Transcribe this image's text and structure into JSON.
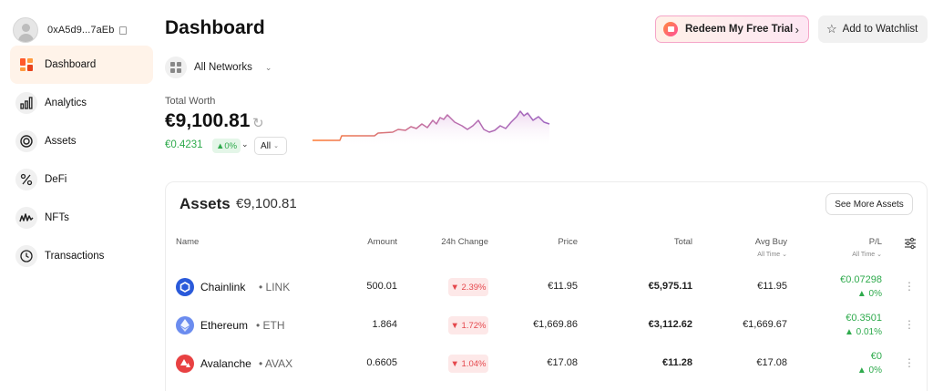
{
  "account": {
    "address": "0xA5d9...7aEb"
  },
  "sidebar": {
    "items": [
      {
        "label": "Dashboard",
        "icon": "dashboard-icon",
        "active": true
      },
      {
        "label": "Analytics",
        "icon": "bar-chart-icon"
      },
      {
        "label": "Assets",
        "icon": "coin-icon"
      },
      {
        "label": "DeFi",
        "icon": "defi-icon"
      },
      {
        "label": "NFTs",
        "icon": "wave-icon"
      },
      {
        "label": "Transactions",
        "icon": "clock-icon"
      }
    ]
  },
  "header": {
    "title": "Dashboard",
    "redeem_label": "Redeem My Free Trial",
    "watchlist_label": "Add to Watchlist"
  },
  "networks": {
    "selected": "All Networks"
  },
  "total_worth": {
    "label": "Total Worth",
    "value": "€9,100.81",
    "change": "€0.4231",
    "change_pct": "▲0%",
    "range": "All"
  },
  "colors": {
    "accent": "#ff7a30",
    "positive": "#2eaa4c",
    "negative": "#e5484d",
    "line": "#b470b8"
  },
  "assets": {
    "title": "Assets",
    "total": "€9,100.81",
    "see_more": "See More Assets",
    "columns": {
      "name": "Name",
      "amount": "Amount",
      "change": "24h Change",
      "price": "Price",
      "total": "Total",
      "avg_buy": "Avg Buy",
      "avg_buy_sub": "All Time ⌄",
      "pl": "P/L",
      "pl_sub": "All Time ⌄"
    },
    "rows": [
      {
        "name": "Chainlink",
        "symbol": "• LINK",
        "amount": "500.01",
        "change": "▼ 2.39%",
        "price": "€11.95",
        "total": "€5,975.11",
        "avg_buy": "€11.95",
        "pl_value": "€0.07298",
        "pl_pct": "▲ 0%",
        "coin_color": "#2a5ada"
      },
      {
        "name": "Ethereum",
        "symbol": "• ETH",
        "amount": "1.864",
        "change": "▼ 1.72%",
        "price": "€1,669.86",
        "total": "€3,112.62",
        "avg_buy": "€1,669.67",
        "pl_value": "€0.3501",
        "pl_pct": "▲ 0.01%",
        "coin_color": "#6b8cef"
      },
      {
        "name": "Avalanche",
        "symbol": "• AVAX",
        "amount": "0.6605",
        "change": "▼ 1.04%",
        "price": "€17.08",
        "total": "€11.28",
        "avg_buy": "€17.08",
        "pl_value": "€0",
        "pl_pct": "▲ 0%",
        "coin_color": "#e84142"
      }
    ]
  }
}
